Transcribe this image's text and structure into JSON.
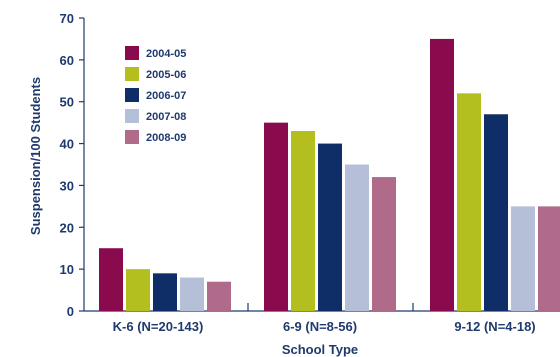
{
  "chart_data": {
    "type": "bar",
    "title": "",
    "xlabel": "School Type",
    "ylabel": "Suspension/100 Students",
    "ylim": [
      0,
      70
    ],
    "yticks": [
      0,
      10,
      20,
      30,
      40,
      50,
      60,
      70
    ],
    "categories": [
      "K-6 (N=20-143)",
      "6-9 (N=8-56)",
      "9-12 (N=4-18)"
    ],
    "series": [
      {
        "name": "2004-05",
        "color": "#8a0a4e",
        "values": [
          15,
          45,
          65
        ]
      },
      {
        "name": "2005-06",
        "color": "#b2bf1e",
        "values": [
          10,
          43,
          52
        ]
      },
      {
        "name": "2006-07",
        "color": "#0f2d66",
        "values": [
          9,
          40,
          47
        ]
      },
      {
        "name": "2007-08",
        "color": "#b6bfd8",
        "values": [
          8,
          35,
          25
        ]
      },
      {
        "name": "2008-09",
        "color": "#b06a8a",
        "values": [
          7,
          32,
          25
        ]
      }
    ],
    "legend_position": "top-left",
    "grid": false
  }
}
